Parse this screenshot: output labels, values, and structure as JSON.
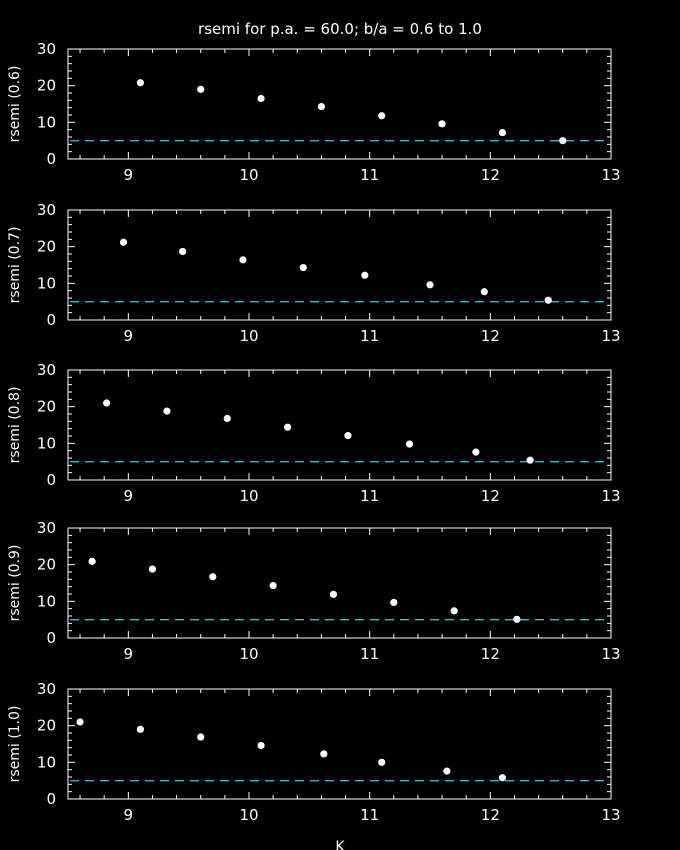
{
  "title": "rsemi for p.a. = 60.0; b/a = 0.6 to 1.0",
  "xlabel": "K",
  "colors": {
    "background": "#000000",
    "axes": "#ffffff",
    "points": "#ffffff",
    "reference_line": "#3fb8c8"
  },
  "chart_data": [
    {
      "type": "scatter",
      "ylabel": "rsemi (0.6)",
      "xlim": [
        8.5,
        13
      ],
      "ylim": [
        0,
        30
      ],
      "xticks": [
        9,
        10,
        11,
        12,
        13
      ],
      "yticks": [
        0,
        10,
        20,
        30
      ],
      "reference_y": 5,
      "points": [
        [
          9.1,
          20.8
        ],
        [
          9.6,
          19.0
        ],
        [
          10.1,
          16.5
        ],
        [
          10.6,
          14.3
        ],
        [
          11.1,
          11.8
        ],
        [
          11.6,
          9.6
        ],
        [
          12.1,
          7.2
        ],
        [
          12.6,
          5.0
        ]
      ]
    },
    {
      "type": "scatter",
      "ylabel": "rsemi (0.7)",
      "xlim": [
        8.5,
        13
      ],
      "ylim": [
        0,
        30
      ],
      "xticks": [
        9,
        10,
        11,
        12,
        13
      ],
      "yticks": [
        0,
        10,
        20,
        30
      ],
      "reference_y": 5,
      "points": [
        [
          8.96,
          21.2
        ],
        [
          9.45,
          18.7
        ],
        [
          9.95,
          16.4
        ],
        [
          10.45,
          14.3
        ],
        [
          10.96,
          12.2
        ],
        [
          11.5,
          9.6
        ],
        [
          11.95,
          7.7
        ],
        [
          12.48,
          5.4
        ]
      ]
    },
    {
      "type": "scatter",
      "ylabel": "rsemi (0.8)",
      "xlim": [
        8.5,
        13
      ],
      "ylim": [
        0,
        30
      ],
      "xticks": [
        9,
        10,
        11,
        12,
        13
      ],
      "yticks": [
        0,
        10,
        20,
        30
      ],
      "reference_y": 5,
      "points": [
        [
          8.82,
          21.0
        ],
        [
          9.32,
          18.8
        ],
        [
          9.82,
          16.8
        ],
        [
          10.32,
          14.4
        ],
        [
          10.82,
          12.1
        ],
        [
          11.33,
          9.8
        ],
        [
          11.88,
          7.6
        ],
        [
          12.33,
          5.4
        ]
      ]
    },
    {
      "type": "scatter",
      "ylabel": "rsemi (0.9)",
      "xlim": [
        8.5,
        13
      ],
      "ylim": [
        0,
        30
      ],
      "xticks": [
        9,
        10,
        11,
        12,
        13
      ],
      "yticks": [
        0,
        10,
        20,
        30
      ],
      "reference_y": 5,
      "points": [
        [
          8.7,
          20.9
        ],
        [
          9.2,
          18.8
        ],
        [
          9.7,
          16.7
        ],
        [
          10.2,
          14.3
        ],
        [
          10.7,
          11.9
        ],
        [
          11.2,
          9.7
        ],
        [
          11.7,
          7.4
        ],
        [
          12.22,
          5.1
        ]
      ]
    },
    {
      "type": "scatter",
      "ylabel": "rsemi (1.0)",
      "xlim": [
        8.5,
        13
      ],
      "ylim": [
        0,
        30
      ],
      "xticks": [
        9,
        10,
        11,
        12,
        13
      ],
      "yticks": [
        0,
        10,
        20,
        30
      ],
      "reference_y": 5,
      "points": [
        [
          8.6,
          21.0
        ],
        [
          9.1,
          19.0
        ],
        [
          9.6,
          16.9
        ],
        [
          10.1,
          14.6
        ],
        [
          10.62,
          12.3
        ],
        [
          11.1,
          10.0
        ],
        [
          11.64,
          7.6
        ],
        [
          12.1,
          5.8
        ]
      ]
    }
  ]
}
